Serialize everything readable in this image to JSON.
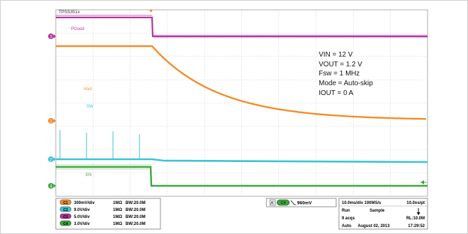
{
  "scope": {
    "title": "TPS5351x",
    "colors": {
      "ch1": "#f28c28",
      "ch2": "#39c3d6",
      "ch3": "#b2339e",
      "ch4": "#3aa83a",
      "grid": "#c8c8c8"
    }
  },
  "labels": {
    "pgood": "PGood",
    "vout": "Vout",
    "sw": "SW",
    "en": "EN"
  },
  "ch_markers": {
    "m1": "1",
    "m2": "2",
    "m3": "3",
    "m4": "4"
  },
  "conditions": {
    "vin": "VIN = 12 V",
    "vout": "VOUT = 1.2 V",
    "fsw": "Fsw = 1 MHz",
    "mode": "Mode = Auto-skip",
    "iout": "IOUT = 0 A"
  },
  "channels": [
    {
      "id": "C1",
      "scale": "300mV/div",
      "imp": "1MΩ",
      "bw": "BW:20.0M"
    },
    {
      "id": "C2",
      "scale": "9.0V/div",
      "imp": "1MΩ",
      "bw": "BW:20.0M"
    },
    {
      "id": "C3",
      "scale": "5.0V/div",
      "imp": "1MΩ",
      "bw": "BW:20.0M"
    },
    {
      "id": "C4",
      "scale": "3.0V/div",
      "imp": "1MΩ",
      "bw": "BW:20.0M"
    }
  ],
  "trigger": {
    "a_label": "A'",
    "channel": "C4",
    "level": "960mV"
  },
  "acq": {
    "timebase": "10.0ms/div 100MS/s",
    "pt": "10.0ns/pt",
    "run": "Run",
    "sample": "Sample",
    "acqs": "9 acqs",
    "rl": "RL:10.0M",
    "auto": "Auto",
    "date": "August 02, 2013",
    "time": "17:29:52"
  }
}
